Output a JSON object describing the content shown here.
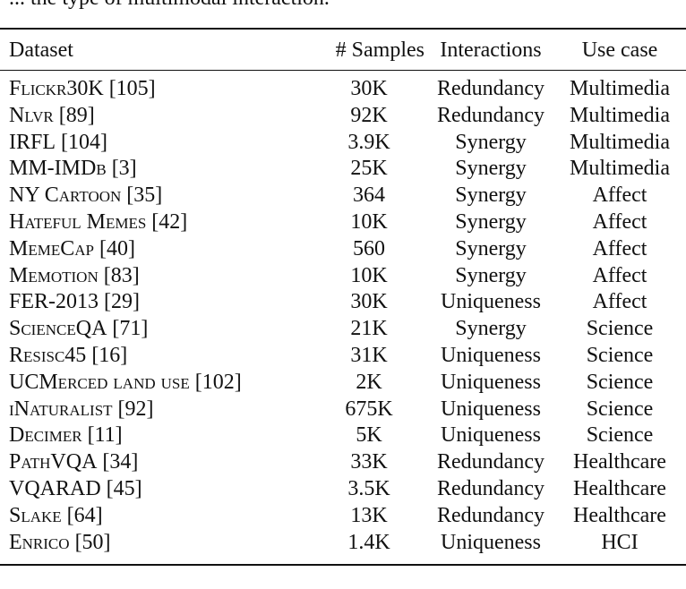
{
  "caption_fragment": "... the type of multimodal interaction.",
  "table": {
    "headers": {
      "dataset": "Dataset",
      "samples": "# Samples",
      "interactions": "Interactions",
      "use_case": "Use case"
    },
    "rows": [
      {
        "name": "Flickr30K",
        "ref": "[105]",
        "samples": "30K",
        "interaction": "Redundancy",
        "use_case": "Multimedia"
      },
      {
        "name": "Nlvr",
        "ref": "[89]",
        "samples": "92K",
        "interaction": "Redundancy",
        "use_case": "Multimedia"
      },
      {
        "name": "IRFL",
        "ref": "[104]",
        "samples": "3.9K",
        "interaction": "Synergy",
        "use_case": "Multimedia"
      },
      {
        "name": "MM-IMDb",
        "ref": "[3]",
        "samples": "25K",
        "interaction": "Synergy",
        "use_case": "Multimedia"
      },
      {
        "name": "NY Cartoon",
        "ref": "[35]",
        "samples": "364",
        "interaction": "Synergy",
        "use_case": "Affect"
      },
      {
        "name": "Hateful Memes",
        "ref": "[42]",
        "samples": "10K",
        "interaction": "Synergy",
        "use_case": "Affect"
      },
      {
        "name": "MemeCap",
        "ref": "[40]",
        "samples": "560",
        "interaction": "Synergy",
        "use_case": "Affect"
      },
      {
        "name": "Memotion",
        "ref": "[83]",
        "samples": "10K",
        "interaction": "Synergy",
        "use_case": "Affect"
      },
      {
        "name": "FER-2013",
        "ref": "[29]",
        "samples": "30K",
        "interaction": "Uniqueness",
        "use_case": "Affect"
      },
      {
        "name": "ScienceQA",
        "ref": "[71]",
        "samples": "21K",
        "interaction": "Synergy",
        "use_case": "Science"
      },
      {
        "name": "Resisc45",
        "ref": "[16]",
        "samples": "31K",
        "interaction": "Uniqueness",
        "use_case": "Science"
      },
      {
        "name": "UCMerced land use",
        "ref": "[102]",
        "samples": "2K",
        "interaction": "Uniqueness",
        "use_case": "Science"
      },
      {
        "name": "iNaturalist",
        "ref": "[92]",
        "samples": "675K",
        "interaction": "Uniqueness",
        "use_case": "Science"
      },
      {
        "name": "Decimer",
        "ref": "[11]",
        "samples": "5K",
        "interaction": "Uniqueness",
        "use_case": "Science"
      },
      {
        "name": "PathVQA",
        "ref": "[34]",
        "samples": "33K",
        "interaction": "Redundancy",
        "use_case": "Healthcare"
      },
      {
        "name": "VQARAD",
        "ref": "[45]",
        "samples": "3.5K",
        "interaction": "Redundancy",
        "use_case": "Healthcare"
      },
      {
        "name": "Slake",
        "ref": "[64]",
        "samples": "13K",
        "interaction": "Redundancy",
        "use_case": "Healthcare"
      },
      {
        "name": "Enrico",
        "ref": "[50]",
        "samples": "1.4K",
        "interaction": "Uniqueness",
        "use_case": "HCI"
      }
    ]
  }
}
